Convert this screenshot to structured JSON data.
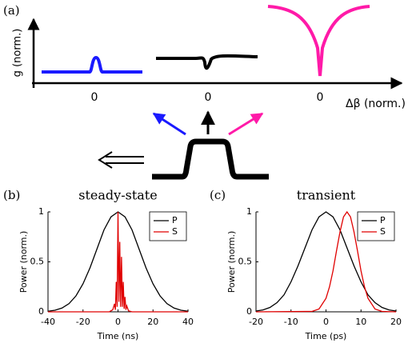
{
  "diagram": {
    "panel_label": "(a)",
    "y_axis_label": "g (norm.)",
    "x_axis_label": "Δβ (norm.)",
    "zero_labels": [
      "0",
      "0",
      "0"
    ]
  },
  "chart_data": [
    {
      "type": "line",
      "panel_label": "(b)",
      "title": "steady-state",
      "x_label": "Time (ns)",
      "y_label": "Power (norm.)",
      "xlim": [
        -40,
        40
      ],
      "xticks": [
        -40,
        -20,
        0,
        20,
        40
      ],
      "ylim": [
        0,
        1
      ],
      "yticks": [
        0,
        0.5,
        1
      ],
      "legend": "top-right",
      "series": [
        {
          "name": "P",
          "color": "#000000",
          "x": [
            -40,
            -36,
            -32,
            -28,
            -24,
            -20,
            -16,
            -12,
            -8,
            -4,
            0,
            4,
            8,
            12,
            16,
            20,
            24,
            28,
            32,
            36,
            40
          ],
          "values": [
            0.006,
            0.016,
            0.038,
            0.082,
            0.16,
            0.28,
            0.44,
            0.63,
            0.82,
            0.95,
            1,
            0.95,
            0.82,
            0.63,
            0.44,
            0.28,
            0.16,
            0.082,
            0.038,
            0.016,
            0.006
          ]
        },
        {
          "name": "S",
          "color": "#e00000",
          "x": [
            -40,
            -5,
            -3,
            -2,
            -1.5,
            -1,
            -0.5,
            0,
            0.5,
            1,
            1.5,
            2,
            2.5,
            3,
            3.5,
            4,
            4.5,
            5,
            6,
            8,
            40
          ],
          "values": [
            0,
            0,
            0.02,
            0.08,
            0.02,
            0.3,
            0.05,
            1,
            0.1,
            0.7,
            0.05,
            0.55,
            0.05,
            0.3,
            0.03,
            0.15,
            0.02,
            0.06,
            0.01,
            0,
            0
          ]
        }
      ]
    },
    {
      "type": "line",
      "panel_label": "(c)",
      "title": "transient",
      "x_label": "Time (ps)",
      "y_label": "Power (norm.)",
      "xlim": [
        -20,
        20
      ],
      "xticks": [
        -20,
        -10,
        0,
        10,
        20
      ],
      "ylim": [
        0,
        1
      ],
      "yticks": [
        0,
        0.5,
        1
      ],
      "legend": "top-right",
      "series": [
        {
          "name": "P",
          "color": "#000000",
          "x": [
            -20,
            -18,
            -16,
            -14,
            -12,
            -10,
            -8,
            -6,
            -4,
            -2,
            0,
            2,
            4,
            6,
            8,
            10,
            12,
            14,
            16,
            18,
            20
          ],
          "values": [
            0.008,
            0.019,
            0.044,
            0.092,
            0.17,
            0.3,
            0.46,
            0.64,
            0.82,
            0.95,
            1,
            0.95,
            0.82,
            0.64,
            0.46,
            0.3,
            0.17,
            0.092,
            0.044,
            0.019,
            0.008
          ]
        },
        {
          "name": "S",
          "color": "#e00000",
          "x": [
            -20,
            -4,
            -2,
            0,
            1,
            2,
            3,
            4,
            5,
            6,
            7,
            8,
            9,
            10,
            11,
            12,
            14,
            16,
            20
          ],
          "values": [
            0,
            0.004,
            0.028,
            0.135,
            0.25,
            0.41,
            0.61,
            0.8,
            0.95,
            1,
            0.95,
            0.8,
            0.61,
            0.41,
            0.25,
            0.135,
            0.028,
            0.004,
            0
          ]
        }
      ]
    }
  ]
}
